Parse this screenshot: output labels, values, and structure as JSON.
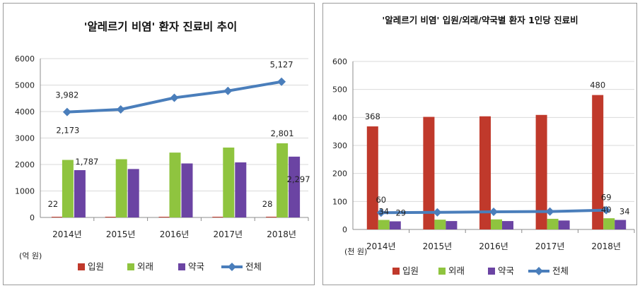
{
  "chart_data": [
    {
      "type": "bar",
      "title": "'알레르기 비염' 환자 진료비 추이",
      "unit_label": "(억 원)",
      "categories": [
        "2014년",
        "2015년",
        "2016년",
        "2017년",
        "2018년"
      ],
      "ylim": [
        0,
        6000
      ],
      "yticks": [
        "0",
        "1000",
        "2000",
        "3000",
        "4000",
        "5000",
        "6000"
      ],
      "grid": true,
      "legend": "bottom",
      "series": [
        {
          "name": "입원",
          "type": "bar",
          "color": "#c0392b",
          "values": [
            22,
            24,
            25,
            27,
            28
          ]
        },
        {
          "name": "외래",
          "type": "bar",
          "color": "#8fc43f",
          "values": [
            2173,
            2200,
            2450,
            2640,
            2801
          ]
        },
        {
          "name": "약국",
          "type": "bar",
          "color": "#6b44a3",
          "values": [
            1787,
            1830,
            2040,
            2080,
            2297
          ]
        },
        {
          "name": "전체",
          "type": "line",
          "color": "#4a7ebb",
          "values": [
            3982,
            4080,
            4520,
            4780,
            5127
          ]
        }
      ],
      "data_labels": [
        {
          "series": 0,
          "index": 0,
          "text": "22"
        },
        {
          "series": 1,
          "index": 0,
          "text": "2,173"
        },
        {
          "series": 2,
          "index": 0,
          "text": "1,787"
        },
        {
          "series": 3,
          "index": 0,
          "text": "3,982"
        },
        {
          "series": 0,
          "index": 4,
          "text": "28"
        },
        {
          "series": 1,
          "index": 4,
          "text": "2,801"
        },
        {
          "series": 2,
          "index": 4,
          "text": "2,297"
        },
        {
          "series": 3,
          "index": 4,
          "text": "5,127"
        }
      ]
    },
    {
      "type": "bar",
      "title": "'알레르기 비염' 입원/외래/약국별 환자 1인당 진료비",
      "unit_label": "(천 원)",
      "categories": [
        "2014년",
        "2015년",
        "2016년",
        "2017년",
        "2018년"
      ],
      "ylim": [
        0,
        600
      ],
      "yticks": [
        "0",
        "100",
        "200",
        "300",
        "400",
        "500",
        "600"
      ],
      "grid": true,
      "legend": "bottom",
      "series": [
        {
          "name": "입원",
          "type": "bar",
          "color": "#c0392b",
          "values": [
            368,
            402,
            404,
            409,
            480
          ]
        },
        {
          "name": "외래",
          "type": "bar",
          "color": "#8fc43f",
          "values": [
            34,
            35,
            36,
            38,
            40
          ]
        },
        {
          "name": "약국",
          "type": "bar",
          "color": "#6b44a3",
          "values": [
            29,
            30,
            30,
            32,
            34
          ]
        },
        {
          "name": "전체",
          "type": "line",
          "color": "#4a7ebb",
          "values": [
            60,
            61,
            63,
            64,
            69
          ]
        }
      ],
      "data_labels": [
        {
          "series": 0,
          "index": 0,
          "text": "368"
        },
        {
          "series": 1,
          "index": 0,
          "text": "34"
        },
        {
          "series": 2,
          "index": 0,
          "text": "29"
        },
        {
          "series": 3,
          "index": 0,
          "text": "60"
        },
        {
          "series": 0,
          "index": 4,
          "text": "480"
        },
        {
          "series": 1,
          "index": 4,
          "text": "40"
        },
        {
          "series": 2,
          "index": 4,
          "text": "34"
        },
        {
          "series": 3,
          "index": 4,
          "text": "69"
        }
      ]
    }
  ]
}
